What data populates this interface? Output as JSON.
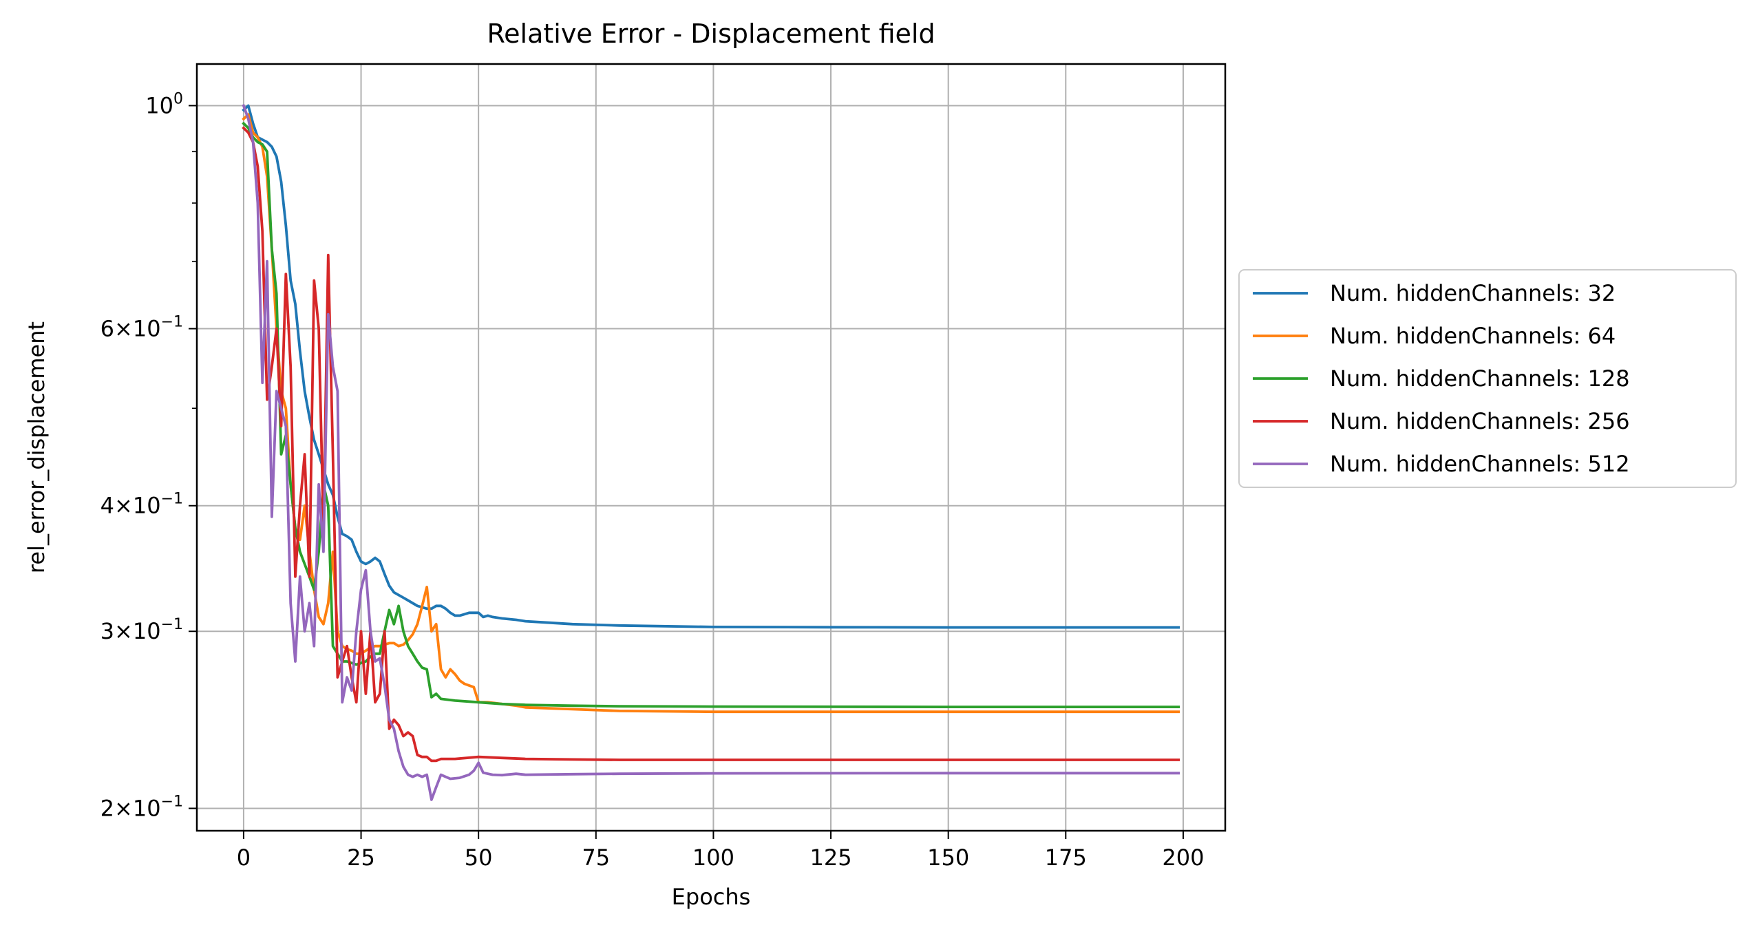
{
  "chart_data": {
    "type": "line",
    "title": "Relative Error - Displacement field",
    "xlabel": "Epochs",
    "ylabel": "rel_error_displacement",
    "yscale": "log",
    "xlim": [
      -9.95,
      208.95
    ],
    "ylim": [
      0.19,
      1.1
    ],
    "grid": true,
    "legend_placement": "right, outside the plot",
    "x_ticks": [
      {
        "value": 0,
        "label": "0"
      },
      {
        "value": 25,
        "label": "25"
      },
      {
        "value": 50,
        "label": "50"
      },
      {
        "value": 75,
        "label": "75"
      },
      {
        "value": 100,
        "label": "100"
      },
      {
        "value": 125,
        "label": "125"
      },
      {
        "value": 150,
        "label": "150"
      },
      {
        "value": 175,
        "label": "175"
      },
      {
        "value": 200,
        "label": "200"
      }
    ],
    "y_ticks": [
      {
        "value": 1.0,
        "base": "10",
        "exp": "0"
      },
      {
        "value": 0.6,
        "base": "6×10",
        "exp": "−1"
      },
      {
        "value": 0.4,
        "base": "4×10",
        "exp": "−1"
      },
      {
        "value": 0.3,
        "base": "3×10",
        "exp": "−1"
      },
      {
        "value": 0.2,
        "base": "2×10",
        "exp": "−1"
      }
    ],
    "y_minor_ticks": [
      0.9,
      0.8,
      0.7,
      0.5
    ],
    "series": [
      {
        "name": "Num. hiddenChannels: 32",
        "color": "#1f77b4",
        "points": [
          [
            0,
            0.99
          ],
          [
            1,
            1.0
          ],
          [
            2,
            0.96
          ],
          [
            3,
            0.93
          ],
          [
            4,
            0.925
          ],
          [
            5,
            0.92
          ],
          [
            6,
            0.91
          ],
          [
            7,
            0.89
          ],
          [
            8,
            0.84
          ],
          [
            9,
            0.76
          ],
          [
            10,
            0.67
          ],
          [
            11,
            0.635
          ],
          [
            12,
            0.57
          ],
          [
            13,
            0.52
          ],
          [
            14,
            0.49
          ],
          [
            15,
            0.465
          ],
          [
            16,
            0.45
          ],
          [
            17,
            0.435
          ],
          [
            18,
            0.42
          ],
          [
            19,
            0.41
          ],
          [
            20,
            0.39
          ],
          [
            21,
            0.375
          ],
          [
            22,
            0.373
          ],
          [
            23,
            0.37
          ],
          [
            24,
            0.36
          ],
          [
            25,
            0.352
          ],
          [
            26,
            0.35
          ],
          [
            27,
            0.352
          ],
          [
            28,
            0.355
          ],
          [
            29,
            0.352
          ],
          [
            30,
            0.342
          ],
          [
            31,
            0.333
          ],
          [
            32,
            0.328
          ],
          [
            33,
            0.326
          ],
          [
            34,
            0.324
          ],
          [
            35,
            0.322
          ],
          [
            36,
            0.32
          ],
          [
            37,
            0.318
          ],
          [
            38,
            0.317
          ],
          [
            39,
            0.316
          ],
          [
            40,
            0.316
          ],
          [
            41,
            0.318
          ],
          [
            42,
            0.318
          ],
          [
            43,
            0.316
          ],
          [
            44,
            0.313
          ],
          [
            45,
            0.311
          ],
          [
            46,
            0.311
          ],
          [
            47,
            0.312
          ],
          [
            48,
            0.313
          ],
          [
            49,
            0.313
          ],
          [
            50,
            0.313
          ],
          [
            51,
            0.31
          ],
          [
            52,
            0.311
          ],
          [
            53,
            0.31
          ],
          [
            55,
            0.309
          ],
          [
            58,
            0.308
          ],
          [
            60,
            0.307
          ],
          [
            65,
            0.306
          ],
          [
            70,
            0.305
          ],
          [
            80,
            0.304
          ],
          [
            100,
            0.303
          ],
          [
            125,
            0.3028
          ],
          [
            150,
            0.3027
          ],
          [
            175,
            0.3027
          ],
          [
            199,
            0.3027
          ]
        ]
      },
      {
        "name": "Num. hiddenChannels: 64",
        "color": "#ff7f0e",
        "points": [
          [
            0,
            0.97
          ],
          [
            1,
            0.98
          ],
          [
            2,
            0.94
          ],
          [
            3,
            0.93
          ],
          [
            4,
            0.91
          ],
          [
            5,
            0.85
          ],
          [
            6,
            0.72
          ],
          [
            7,
            0.6
          ],
          [
            8,
            0.52
          ],
          [
            9,
            0.5
          ],
          [
            10,
            0.42
          ],
          [
            11,
            0.38
          ],
          [
            12,
            0.37
          ],
          [
            13,
            0.4
          ],
          [
            14,
            0.36
          ],
          [
            15,
            0.33
          ],
          [
            16,
            0.31
          ],
          [
            17,
            0.305
          ],
          [
            18,
            0.32
          ],
          [
            19,
            0.36
          ],
          [
            20,
            0.3
          ],
          [
            21,
            0.29
          ],
          [
            22,
            0.288
          ],
          [
            23,
            0.287
          ],
          [
            24,
            0.285
          ],
          [
            25,
            0.285
          ],
          [
            26,
            0.287
          ],
          [
            27,
            0.289
          ],
          [
            28,
            0.29
          ],
          [
            29,
            0.29
          ],
          [
            30,
            0.291
          ],
          [
            31,
            0.292
          ],
          [
            32,
            0.292
          ],
          [
            33,
            0.29
          ],
          [
            34,
            0.291
          ],
          [
            35,
            0.294
          ],
          [
            36,
            0.298
          ],
          [
            37,
            0.305
          ],
          [
            38,
            0.318
          ],
          [
            39,
            0.332
          ],
          [
            40,
            0.3
          ],
          [
            41,
            0.305
          ],
          [
            42,
            0.275
          ],
          [
            43,
            0.27
          ],
          [
            44,
            0.275
          ],
          [
            45,
            0.272
          ],
          [
            46,
            0.268
          ],
          [
            47,
            0.266
          ],
          [
            48,
            0.265
          ],
          [
            49,
            0.264
          ],
          [
            50,
            0.255
          ],
          [
            52,
            0.255
          ],
          [
            55,
            0.254
          ],
          [
            58,
            0.253
          ],
          [
            60,
            0.252
          ],
          [
            70,
            0.251
          ],
          [
            80,
            0.25
          ],
          [
            100,
            0.2495
          ],
          [
            150,
            0.2495
          ],
          [
            199,
            0.2495
          ]
        ]
      },
      {
        "name": "Num. hiddenChannels: 128",
        "color": "#2ca02c",
        "points": [
          [
            0,
            0.96
          ],
          [
            1,
            0.95
          ],
          [
            2,
            0.93
          ],
          [
            3,
            0.92
          ],
          [
            4,
            0.915
          ],
          [
            5,
            0.9
          ],
          [
            6,
            0.72
          ],
          [
            7,
            0.65
          ],
          [
            8,
            0.45
          ],
          [
            9,
            0.47
          ],
          [
            10,
            0.42
          ],
          [
            11,
            0.38
          ],
          [
            12,
            0.36
          ],
          [
            13,
            0.35
          ],
          [
            14,
            0.34
          ],
          [
            15,
            0.33
          ],
          [
            16,
            0.36
          ],
          [
            17,
            0.42
          ],
          [
            18,
            0.4
          ],
          [
            19,
            0.29
          ],
          [
            20,
            0.285
          ],
          [
            21,
            0.28
          ],
          [
            22,
            0.28
          ],
          [
            23,
            0.279
          ],
          [
            24,
            0.278
          ],
          [
            25,
            0.279
          ],
          [
            26,
            0.28
          ],
          [
            27,
            0.283
          ],
          [
            28,
            0.285
          ],
          [
            29,
            0.285
          ],
          [
            30,
            0.3
          ],
          [
            31,
            0.315
          ],
          [
            32,
            0.305
          ],
          [
            33,
            0.318
          ],
          [
            34,
            0.3
          ],
          [
            35,
            0.29
          ],
          [
            36,
            0.285
          ],
          [
            37,
            0.28
          ],
          [
            38,
            0.276
          ],
          [
            39,
            0.275
          ],
          [
            40,
            0.258
          ],
          [
            41,
            0.26
          ],
          [
            42,
            0.257
          ],
          [
            45,
            0.256
          ],
          [
            50,
            0.255
          ],
          [
            55,
            0.254
          ],
          [
            60,
            0.2535
          ],
          [
            70,
            0.253
          ],
          [
            80,
            0.2527
          ],
          [
            100,
            0.2525
          ],
          [
            150,
            0.2523
          ],
          [
            199,
            0.2523
          ]
        ]
      },
      {
        "name": "Num. hiddenChannels: 256",
        "color": "#d62728",
        "points": [
          [
            0,
            0.95
          ],
          [
            1,
            0.94
          ],
          [
            2,
            0.92
          ],
          [
            3,
            0.87
          ],
          [
            4,
            0.75
          ],
          [
            5,
            0.51
          ],
          [
            6,
            0.55
          ],
          [
            7,
            0.6
          ],
          [
            8,
            0.48
          ],
          [
            9,
            0.68
          ],
          [
            10,
            0.55
          ],
          [
            11,
            0.34
          ],
          [
            12,
            0.4
          ],
          [
            13,
            0.45
          ],
          [
            14,
            0.34
          ],
          [
            15,
            0.67
          ],
          [
            16,
            0.6
          ],
          [
            17,
            0.38
          ],
          [
            18,
            0.71
          ],
          [
            19,
            0.45
          ],
          [
            20,
            0.27
          ],
          [
            21,
            0.28
          ],
          [
            22,
            0.29
          ],
          [
            23,
            0.27
          ],
          [
            24,
            0.255
          ],
          [
            25,
            0.3
          ],
          [
            26,
            0.26
          ],
          [
            27,
            0.3
          ],
          [
            28,
            0.255
          ],
          [
            29,
            0.26
          ],
          [
            30,
            0.3
          ],
          [
            31,
            0.24
          ],
          [
            32,
            0.245
          ],
          [
            33,
            0.242
          ],
          [
            34,
            0.236
          ],
          [
            35,
            0.238
          ],
          [
            36,
            0.236
          ],
          [
            37,
            0.226
          ],
          [
            38,
            0.225
          ],
          [
            39,
            0.225
          ],
          [
            40,
            0.223
          ],
          [
            41,
            0.223
          ],
          [
            42,
            0.224
          ],
          [
            45,
            0.224
          ],
          [
            50,
            0.225
          ],
          [
            55,
            0.2245
          ],
          [
            60,
            0.224
          ],
          [
            70,
            0.2237
          ],
          [
            80,
            0.2235
          ],
          [
            100,
            0.2235
          ],
          [
            150,
            0.2235
          ],
          [
            199,
            0.2235
          ]
        ]
      },
      {
        "name": "Num. hiddenChannels: 512",
        "color": "#9467bd",
        "points": [
          [
            0,
            1.0
          ],
          [
            1,
            0.97
          ],
          [
            2,
            0.92
          ],
          [
            3,
            0.8
          ],
          [
            4,
            0.53
          ],
          [
            5,
            0.7
          ],
          [
            6,
            0.39
          ],
          [
            7,
            0.52
          ],
          [
            8,
            0.5
          ],
          [
            9,
            0.48
          ],
          [
            10,
            0.32
          ],
          [
            11,
            0.28
          ],
          [
            12,
            0.34
          ],
          [
            13,
            0.3
          ],
          [
            14,
            0.32
          ],
          [
            15,
            0.29
          ],
          [
            16,
            0.42
          ],
          [
            17,
            0.36
          ],
          [
            18,
            0.62
          ],
          [
            19,
            0.55
          ],
          [
            20,
            0.52
          ],
          [
            21,
            0.255
          ],
          [
            22,
            0.27
          ],
          [
            23,
            0.262
          ],
          [
            24,
            0.3
          ],
          [
            25,
            0.33
          ],
          [
            26,
            0.345
          ],
          [
            27,
            0.3
          ],
          [
            28,
            0.28
          ],
          [
            29,
            0.282
          ],
          [
            30,
            0.265
          ],
          [
            31,
            0.245
          ],
          [
            32,
            0.24
          ],
          [
            33,
            0.228
          ],
          [
            34,
            0.22
          ],
          [
            35,
            0.216
          ],
          [
            36,
            0.215
          ],
          [
            37,
            0.216
          ],
          [
            38,
            0.215
          ],
          [
            39,
            0.216
          ],
          [
            40,
            0.204
          ],
          [
            41,
            0.21
          ],
          [
            42,
            0.216
          ],
          [
            43,
            0.215
          ],
          [
            44,
            0.214
          ],
          [
            46,
            0.2145
          ],
          [
            48,
            0.216
          ],
          [
            49,
            0.218
          ],
          [
            50,
            0.222
          ],
          [
            51,
            0.217
          ],
          [
            53,
            0.216
          ],
          [
            55,
            0.2158
          ],
          [
            58,
            0.2165
          ],
          [
            60,
            0.216
          ],
          [
            70,
            0.2163
          ],
          [
            80,
            0.2165
          ],
          [
            100,
            0.2167
          ],
          [
            150,
            0.2168
          ],
          [
            199,
            0.2168
          ]
        ]
      }
    ]
  }
}
